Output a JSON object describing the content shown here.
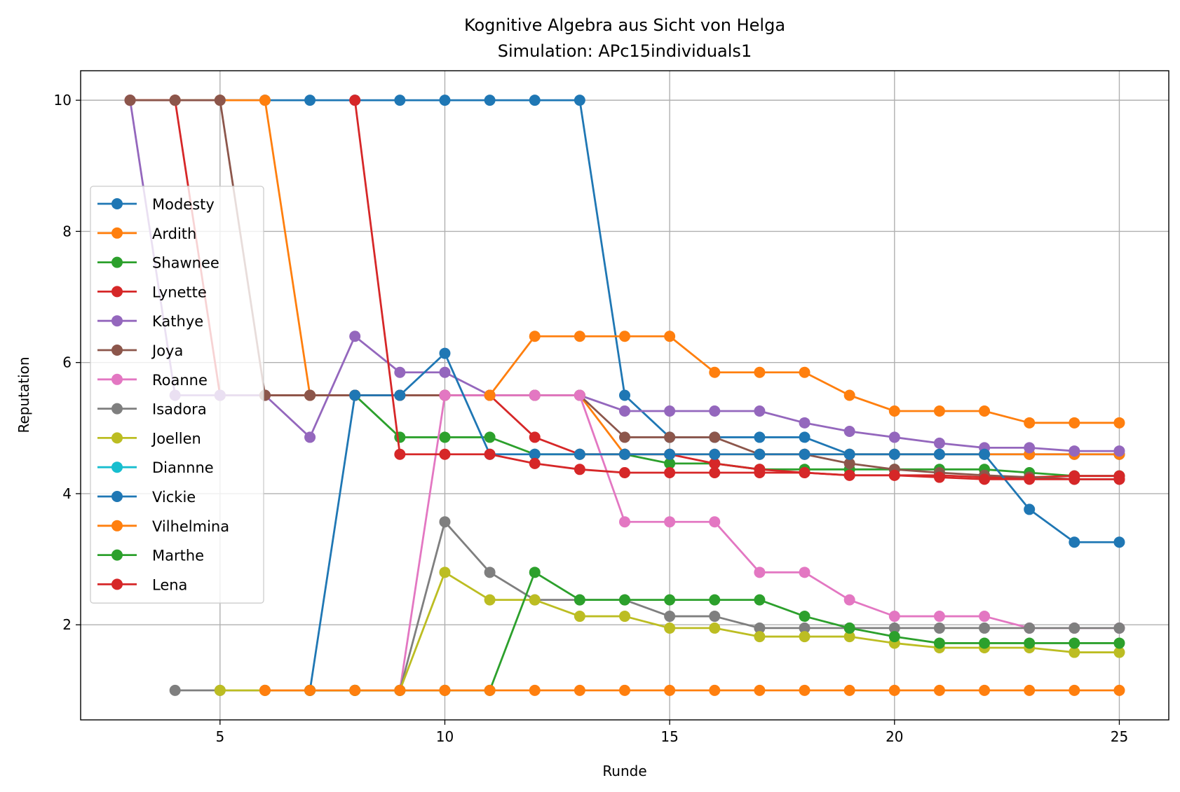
{
  "chart_data": {
    "type": "line",
    "title": "Kognitive Algebra aus Sicht von Helga",
    "subtitle": "Simulation: APc15individuals1",
    "xlabel": "Runde",
    "ylabel": "Reputation",
    "xlim": [
      1.9,
      26.1
    ],
    "ylim": [
      0.55,
      10.45
    ],
    "xticks": [
      5,
      10,
      15,
      20,
      25
    ],
    "yticks": [
      2,
      4,
      6,
      8,
      10
    ],
    "grid": true,
    "legend_position": "center-left",
    "series": [
      {
        "name": "Modesty",
        "color": "#1f77b4",
        "x": [
          3,
          4,
          5,
          6,
          7,
          8,
          9,
          10,
          11,
          12,
          13,
          14,
          15,
          16,
          17,
          18,
          19,
          20,
          21,
          22,
          23,
          24,
          25
        ],
        "y": [
          10,
          10,
          10,
          10,
          10,
          10,
          10,
          10,
          10,
          10,
          10,
          5.5,
          4.86,
          4.86,
          4.86,
          4.86,
          4.6,
          4.6,
          4.6,
          4.6,
          4.6,
          4.6,
          4.6
        ]
      },
      {
        "name": "Ardith",
        "color": "#ff7f0e",
        "x": [
          3,
          4,
          5,
          6,
          7,
          8,
          9,
          10,
          11,
          12,
          13,
          14,
          15,
          16,
          17,
          18,
          19,
          20,
          21,
          22,
          23,
          24,
          25
        ],
        "y": [
          10,
          10,
          10,
          10,
          5.5,
          5.5,
          5.5,
          5.5,
          5.5,
          5.5,
          5.5,
          4.6,
          4.6,
          4.6,
          4.6,
          4.6,
          4.6,
          4.6,
          4.6,
          4.6,
          4.6,
          4.6,
          4.6
        ]
      },
      {
        "name": "Shawnee",
        "color": "#2ca02c",
        "x": [
          5,
          6,
          7,
          8,
          9,
          10,
          11,
          12,
          13,
          14,
          15,
          16,
          17,
          18,
          19,
          20,
          21,
          22,
          23,
          24,
          25
        ],
        "y": [
          5.5,
          5.5,
          5.5,
          5.5,
          4.86,
          4.86,
          4.86,
          4.6,
          4.6,
          4.6,
          4.46,
          4.46,
          4.37,
          4.37,
          4.37,
          4.37,
          4.37,
          4.37,
          4.32,
          4.27,
          4.27
        ]
      },
      {
        "name": "Lynette",
        "color": "#d62728",
        "x": [
          3,
          4,
          5,
          6,
          7,
          8,
          9,
          10,
          11,
          12,
          13,
          14,
          15,
          16,
          17,
          18,
          19,
          20,
          21,
          22,
          23,
          24,
          25
        ],
        "y": [
          10,
          10,
          5.5,
          5.5,
          5.5,
          5.5,
          5.5,
          5.5,
          5.5,
          4.86,
          4.6,
          4.6,
          4.6,
          4.46,
          4.37,
          4.32,
          4.28,
          4.28,
          4.28,
          4.25,
          4.25,
          4.27,
          4.27
        ]
      },
      {
        "name": "Kathye",
        "color": "#9467bd",
        "x": [
          3,
          4,
          5,
          6,
          7,
          8,
          9,
          10,
          11,
          12,
          13,
          14,
          15,
          16,
          17,
          18,
          19,
          20,
          21,
          22,
          23,
          24,
          25
        ],
        "y": [
          10,
          5.5,
          5.5,
          5.5,
          4.86,
          6.4,
          5.85,
          5.85,
          5.5,
          5.5,
          5.5,
          5.26,
          5.26,
          5.26,
          5.26,
          5.08,
          4.95,
          4.86,
          4.77,
          4.7,
          4.7,
          4.65,
          4.65
        ]
      },
      {
        "name": "Joya",
        "color": "#8c564b",
        "x": [
          3,
          4,
          5,
          6,
          7,
          8,
          9,
          10,
          11,
          12,
          13,
          14,
          15,
          16,
          17,
          18,
          19,
          20,
          21,
          22,
          23,
          24,
          25
        ],
        "y": [
          10,
          10,
          10,
          5.5,
          5.5,
          5.5,
          5.5,
          5.5,
          5.5,
          5.5,
          5.5,
          4.86,
          4.86,
          4.86,
          4.6,
          4.6,
          4.46,
          4.37,
          4.32,
          4.28,
          4.25,
          4.22,
          4.22
        ]
      },
      {
        "name": "Roanne",
        "color": "#e377c2",
        "x": [
          9,
          10,
          11,
          12,
          13,
          14,
          15,
          16,
          17,
          18,
          19,
          20,
          21,
          22,
          23,
          24,
          25
        ],
        "y": [
          1,
          5.5,
          5.5,
          5.5,
          5.5,
          3.57,
          3.57,
          3.57,
          2.8,
          2.8,
          2.38,
          2.13,
          2.13,
          2.13,
          1.95,
          1.95,
          1.95
        ]
      },
      {
        "name": "Isadora",
        "color": "#7f7f7f",
        "x": [
          4,
          5,
          6,
          7,
          8,
          9,
          10,
          11,
          12,
          13,
          14,
          15,
          16,
          17,
          18,
          19,
          20,
          21,
          22,
          23,
          24,
          25
        ],
        "y": [
          1,
          1,
          1,
          1,
          1,
          1,
          3.57,
          2.8,
          2.38,
          2.38,
          2.38,
          2.13,
          2.13,
          1.95,
          1.95,
          1.95,
          1.95,
          1.95,
          1.95,
          1.95,
          1.95,
          1.95
        ]
      },
      {
        "name": "Joellen",
        "color": "#bcbd22",
        "x": [
          5,
          6,
          7,
          8,
          9,
          10,
          11,
          12,
          13,
          14,
          15,
          16,
          17,
          18,
          19,
          20,
          21,
          22,
          23,
          24,
          25
        ],
        "y": [
          1,
          1,
          1,
          1,
          1,
          2.8,
          2.38,
          2.38,
          2.13,
          2.13,
          1.95,
          1.95,
          1.82,
          1.82,
          1.82,
          1.72,
          1.65,
          1.65,
          1.65,
          1.58,
          1.58
        ]
      },
      {
        "name": "Diannne",
        "color": "#17becf",
        "x": [],
        "y": []
      },
      {
        "name": "Vickie",
        "color": "#1f77b4",
        "x": [
          7,
          8,
          9,
          10,
          11,
          12,
          13,
          14,
          15,
          16,
          17,
          18,
          19,
          20,
          21,
          22,
          23,
          24,
          25
        ],
        "y": [
          1,
          5.5,
          5.5,
          6.14,
          4.6,
          4.6,
          4.6,
          4.6,
          4.6,
          4.6,
          4.6,
          4.6,
          4.6,
          4.6,
          4.6,
          4.6,
          3.76,
          3.26,
          3.26
        ]
      },
      {
        "name": "Vilhelmina",
        "color": "#ff7f0e",
        "x": [
          11,
          12,
          13,
          14,
          15,
          16,
          17,
          18,
          19,
          20,
          21,
          22,
          23,
          24,
          25
        ],
        "y": [
          5.5,
          6.4,
          6.4,
          6.4,
          6.4,
          5.85,
          5.85,
          5.85,
          5.5,
          5.26,
          5.26,
          5.26,
          5.08,
          5.08,
          5.08
        ]
      },
      {
        "name": "Marthe",
        "color": "#2ca02c",
        "x": [
          7,
          8,
          9,
          10,
          11,
          12,
          13,
          14,
          15,
          16,
          17,
          18,
          19,
          20,
          21,
          22,
          23,
          24,
          25
        ],
        "y": [
          1,
          1,
          1,
          1,
          1,
          2.8,
          2.38,
          2.38,
          2.38,
          2.38,
          2.38,
          2.13,
          1.95,
          1.82,
          1.72,
          1.72,
          1.72,
          1.72,
          1.72
        ]
      },
      {
        "name": "Lena",
        "color": "#d62728",
        "x": [
          8,
          9,
          10,
          11,
          12,
          13,
          14,
          15,
          16,
          17,
          18,
          19,
          20,
          21,
          22,
          23,
          24,
          25
        ],
        "y": [
          10,
          4.6,
          4.6,
          4.6,
          4.46,
          4.37,
          4.32,
          4.32,
          4.32,
          4.32,
          4.32,
          4.28,
          4.28,
          4.25,
          4.22,
          4.22,
          4.22,
          4.22
        ]
      },
      {
        "name": "Ardith",
        "color": "#ff7f0e",
        "x": [
          6,
          7,
          8,
          9,
          10,
          11,
          12,
          13,
          14,
          15,
          16,
          17,
          18,
          19,
          20,
          21,
          22,
          23,
          24,
          25
        ],
        "y": [
          1,
          1,
          1,
          1,
          1,
          1,
          1,
          1,
          1,
          1,
          1,
          1,
          1,
          1,
          1,
          1,
          1,
          1,
          1,
          1
        ],
        "legend": false
      }
    ]
  }
}
